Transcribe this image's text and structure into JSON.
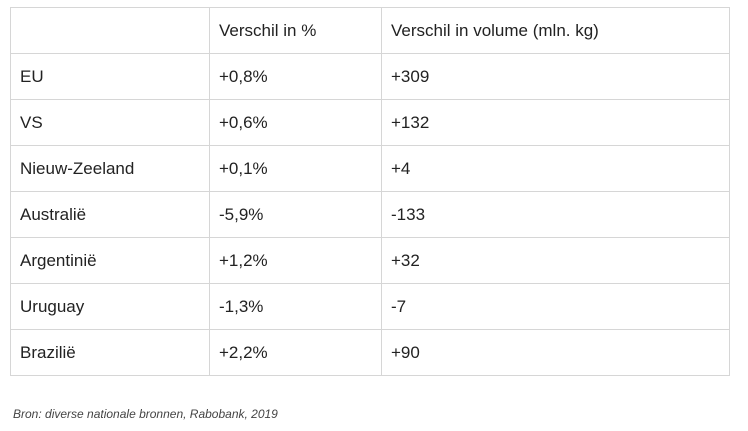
{
  "table": {
    "headers": [
      "",
      "Verschil in %",
      "Verschil in volume (mln. kg)"
    ],
    "rows": [
      [
        "EU",
        "+0,8%",
        "+309"
      ],
      [
        "VS",
        "+0,6%",
        "+132"
      ],
      [
        "Nieuw-Zeeland",
        "+0,1%",
        "+4"
      ],
      [
        "Australië",
        "-5,9%",
        "-133"
      ],
      [
        "Argentinië",
        "+1,2%",
        "+32"
      ],
      [
        "Uruguay",
        "-1,3%",
        "-7"
      ],
      [
        "Brazilië",
        "+2,2%",
        "+90"
      ]
    ]
  },
  "source": "Bron: diverse nationale bronnen, Rabobank, 2019"
}
